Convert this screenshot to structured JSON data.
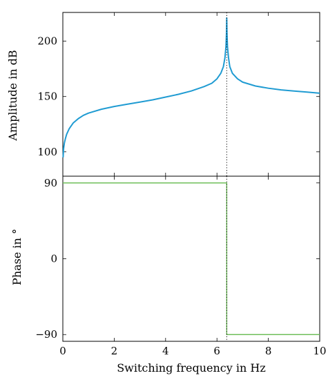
{
  "chart_data": [
    {
      "type": "line",
      "ylabel": "Amplitude in dB",
      "xlabel": "",
      "xlim": [
        0,
        10
      ],
      "ylim": [
        78,
        226
      ],
      "xticks": [
        "0",
        "2",
        "4",
        "6",
        "8",
        "10"
      ],
      "yticks": [
        100,
        150,
        200
      ],
      "ytick_labels": [
        "100",
        "150",
        "200"
      ],
      "grid": false,
      "series": [
        {
          "color": "#1f9bd2",
          "points": [
            [
              0.01,
              95
            ],
            [
              0.03,
              103
            ],
            [
              0.06,
              108
            ],
            [
              0.1,
              112
            ],
            [
              0.15,
              116
            ],
            [
              0.25,
              121
            ],
            [
              0.4,
              126
            ],
            [
              0.6,
              130
            ],
            [
              0.8,
              133
            ],
            [
              1.0,
              135
            ],
            [
              1.5,
              138.5
            ],
            [
              2.0,
              141
            ],
            [
              2.5,
              143
            ],
            [
              3.0,
              145
            ],
            [
              3.5,
              147
            ],
            [
              4.0,
              149.5
            ],
            [
              4.5,
              152
            ],
            [
              5.0,
              155
            ],
            [
              5.5,
              159
            ],
            [
              5.8,
              162
            ],
            [
              6.0,
              166
            ],
            [
              6.15,
              171
            ],
            [
              6.25,
              177
            ],
            [
              6.31,
              185
            ],
            [
              6.35,
              195
            ],
            [
              6.37,
              207
            ],
            [
              6.38,
              221
            ],
            [
              6.39,
              207
            ],
            [
              6.41,
              195
            ],
            [
              6.45,
              185
            ],
            [
              6.5,
              177
            ],
            [
              6.6,
              171
            ],
            [
              6.8,
              166
            ],
            [
              7.0,
              163
            ],
            [
              7.5,
              159.5
            ],
            [
              8.0,
              157.5
            ],
            [
              8.5,
              156
            ],
            [
              9.0,
              155
            ],
            [
              9.5,
              154
            ],
            [
              10.0,
              153
            ]
          ]
        }
      ],
      "marker_x": 6.38
    },
    {
      "type": "line",
      "ylabel": "Phase in °",
      "xlabel": "Switching frequency in Hz",
      "xlim": [
        0,
        10
      ],
      "ylim": [
        -98,
        98
      ],
      "xticks": [
        "0",
        "2",
        "4",
        "6",
        "8",
        "10"
      ],
      "yticks": [
        90,
        0,
        -90
      ],
      "ytick_labels": [
        "90",
        "0",
        "−90"
      ],
      "grid": false,
      "series": [
        {
          "color": "#6fbf5a",
          "points": [
            [
              0,
              90
            ],
            [
              6.38,
              90
            ],
            [
              6.38,
              -90
            ],
            [
              10,
              -90
            ]
          ]
        }
      ],
      "marker_x": 6.38
    }
  ]
}
